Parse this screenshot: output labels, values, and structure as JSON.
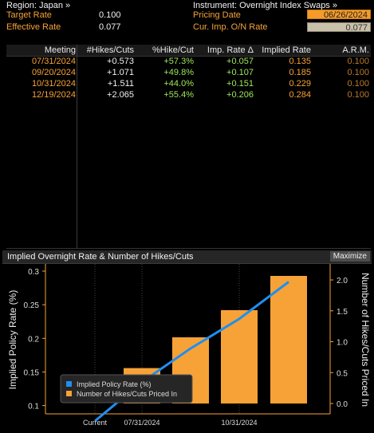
{
  "top": {
    "region": "Region: Japan »",
    "instrument": "Instrument: Overnight Index Swaps »",
    "target_rate_label": "Target Rate",
    "target_rate_value": "0.100",
    "effective_rate_label": "Effective Rate",
    "effective_rate_value": "0.077",
    "pricing_date_label": "Pricing Date",
    "pricing_date_value": "06/26/2024",
    "cur_imp_label": "Cur. Imp. O/N Rate",
    "cur_imp_value": "0.077"
  },
  "table": {
    "headers": [
      "Meeting",
      "#Hikes/Cuts",
      "%Hike/Cut",
      "Imp. Rate Δ",
      "Implied Rate",
      "A.R.M."
    ],
    "rows": [
      [
        "07/31/2024",
        "+0.573",
        "+57.3%",
        "+0.057",
        "0.135",
        "0.100"
      ],
      [
        "09/20/2024",
        "+1.071",
        "+49.8%",
        "+0.107",
        "0.185",
        "0.100"
      ],
      [
        "10/31/2024",
        "+1.511",
        "+44.0%",
        "+0.151",
        "0.229",
        "0.100"
      ],
      [
        "12/19/2024",
        "+2.065",
        "+55.4%",
        "+0.206",
        "0.284",
        "0.100"
      ]
    ]
  },
  "chart": {
    "title": "Implied Overnight Rate & Number of Hikes/Cuts",
    "maximize_label": "Maximize"
  },
  "chart_data": {
    "type": "bar",
    "title": "Implied Overnight Rate & Number of Hikes/Cuts",
    "categories": [
      "Current",
      "07/31/2024",
      "09/20/2024",
      "10/31/2024",
      "12/19/2024"
    ],
    "x_tick_labels": [
      "Current",
      "07/31/2024",
      "10/31/2024"
    ],
    "ylabel_left": "Implied Policy Rate (%)",
    "ylabel_right": "Number of Hikes/Cuts Priced In",
    "ylim_left": [
      0.077,
      0.3
    ],
    "ylim_right": [
      0,
      2.3
    ],
    "yticks_left": [
      "0.1",
      "0.15",
      "0.2",
      "0.25",
      "0.3"
    ],
    "yticks_right": [
      "0.0",
      "0.5",
      "1.0",
      "1.5",
      "2.0"
    ],
    "series": [
      {
        "name": "Implied Policy Rate (%)",
        "type": "line",
        "color": "#1f8ff0",
        "values": [
          0.077,
          0.135,
          0.185,
          0.229,
          0.284
        ]
      },
      {
        "name": "Number of Hikes/Cuts Priced In",
        "type": "bar",
        "axis": "right",
        "color": "#f7a237",
        "values": [
          null,
          0.573,
          1.071,
          1.511,
          2.065
        ]
      }
    ],
    "legend": [
      "Implied Policy Rate (%)",
      "Number of Hikes/Cuts Priced In"
    ],
    "legend_position": "bottom-left"
  }
}
